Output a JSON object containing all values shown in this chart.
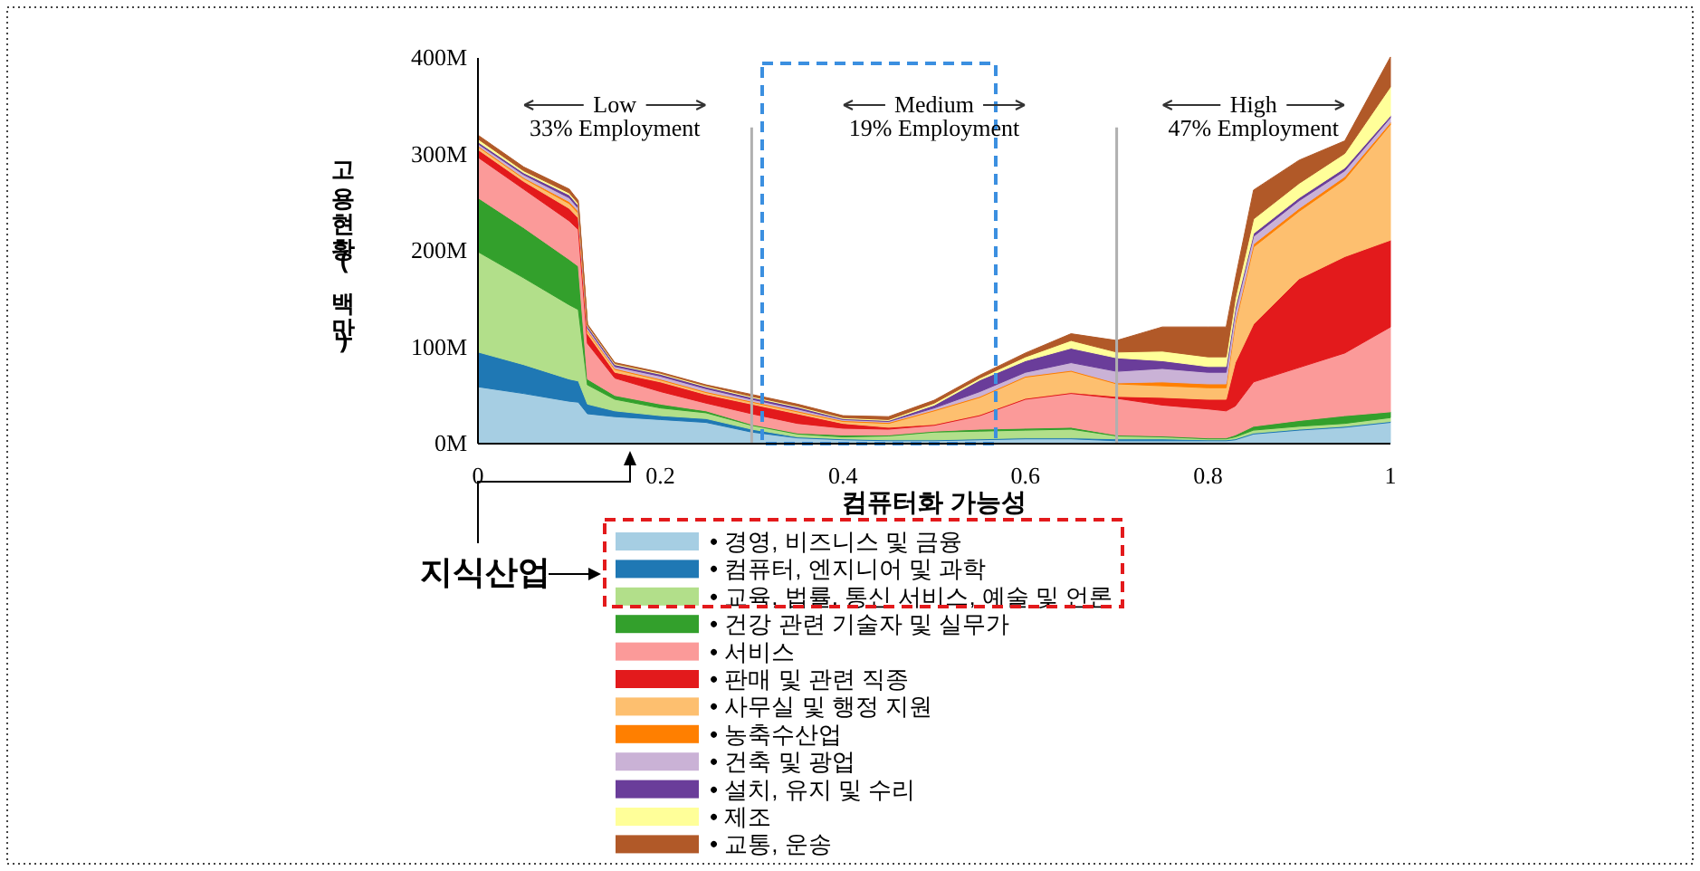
{
  "chart_data": {
    "type": "area",
    "stacked": true,
    "xlabel": "컴퓨터화 가능성",
    "ylabel": "고용현황(백만)",
    "x": [
      0,
      0.05,
      0.1,
      0.11,
      0.12,
      0.15,
      0.2,
      0.25,
      0.3,
      0.35,
      0.4,
      0.45,
      0.5,
      0.55,
      0.6,
      0.65,
      0.7,
      0.75,
      0.8,
      0.82,
      0.83,
      0.85,
      0.9,
      0.95,
      1
    ],
    "xlim": [
      0,
      1
    ],
    "xticks": [
      0,
      0.2,
      0.4,
      0.6,
      0.8,
      1
    ],
    "ylim": [
      0,
      400
    ],
    "yticks": [
      {
        "value": 0,
        "label": "0M"
      },
      {
        "value": 100,
        "label": "100M"
      },
      {
        "value": 200,
        "label": "200M"
      },
      {
        "value": 300,
        "label": "300M"
      },
      {
        "value": 400,
        "label": "400M"
      }
    ],
    "grid": false,
    "legend": "bottom",
    "series": [
      {
        "name": "• 경영, 비즈니스 및 금융",
        "color": "#a6cee3",
        "values": [
          59,
          52,
          44,
          43,
          31,
          28,
          25,
          22,
          12,
          6,
          4,
          3,
          3,
          4,
          5,
          5,
          3,
          3,
          3,
          3,
          4,
          10,
          14,
          17,
          22
        ]
      },
      {
        "name": "• 컴퓨터, 엔지니어 및 과학",
        "color": "#1f78b4",
        "values": [
          36,
          30,
          23,
          22,
          10,
          6,
          4,
          4,
          3,
          1,
          1,
          1,
          1,
          1,
          1,
          1,
          2,
          2,
          1,
          1,
          1,
          1,
          1,
          1,
          1
        ]
      },
      {
        "name": "• 교육, 법률, 통신 서비스, 예술 및 언론",
        "color": "#b2df8a",
        "values": [
          104,
          90,
          77,
          74,
          20,
          12,
          8,
          6,
          4,
          3,
          2,
          4,
          8,
          8,
          8,
          9,
          3,
          2,
          1,
          1,
          2,
          3,
          3,
          3,
          4
        ]
      },
      {
        "name": "• 건강 관련 기술자 및 실무가",
        "color": "#33a02c",
        "values": [
          56,
          52,
          47,
          45,
          6,
          4,
          4,
          2,
          1,
          1,
          2,
          1,
          1,
          2,
          2,
          2,
          1,
          1,
          1,
          1,
          2,
          4,
          6,
          8,
          6
        ]
      },
      {
        "name": "• 서비스",
        "color": "#fb9a99",
        "values": [
          42,
          40,
          40,
          38,
          37,
          18,
          13,
          8,
          11,
          10,
          7,
          6,
          6,
          14,
          30,
          35,
          38,
          32,
          30,
          28,
          30,
          46,
          55,
          65,
          88
        ]
      },
      {
        "name": "• 판매 및 관련 직종",
        "color": "#e31a1c",
        "values": [
          8,
          8,
          13,
          12,
          10,
          6,
          10,
          9,
          10,
          10,
          5,
          2,
          1,
          1,
          1,
          1,
          2,
          8,
          10,
          12,
          45,
          60,
          92,
          100,
          90
        ]
      },
      {
        "name": "• 사무실 및 행정 지원",
        "color": "#fdbf6f",
        "values": [
          3,
          3,
          5,
          5,
          3,
          3,
          2,
          2,
          2,
          2,
          2,
          4,
          14,
          18,
          22,
          22,
          13,
          12,
          12,
          12,
          40,
          80,
          70,
          80,
          120
        ]
      },
      {
        "name": "• 농축수산업",
        "color": "#ff7f00",
        "values": [
          1,
          1,
          2,
          2,
          1,
          1,
          1,
          1,
          1,
          1,
          1,
          1,
          1,
          1,
          1,
          1,
          1,
          4,
          4,
          4,
          3,
          3,
          3,
          3,
          2
        ]
      },
      {
        "name": "• 건축 및 광업",
        "color": "#cab2d6",
        "values": [
          2,
          3,
          4,
          3,
          2,
          2,
          3,
          3,
          2,
          2,
          1,
          1,
          2,
          5,
          4,
          8,
          12,
          14,
          12,
          12,
          10,
          8,
          8,
          6,
          5
        ]
      },
      {
        "name": "• 설치, 유지 및 수리",
        "color": "#6a3d9a",
        "values": [
          2,
          2,
          3,
          3,
          2,
          2,
          2,
          2,
          2,
          2,
          1,
          1,
          3,
          12,
          12,
          15,
          14,
          8,
          6,
          6,
          4,
          3,
          3,
          3,
          2
        ]
      },
      {
        "name": "• 제조",
        "color": "#ffff99",
        "values": [
          3,
          2,
          2,
          2,
          1,
          1,
          1,
          1,
          1,
          1,
          1,
          1,
          2,
          2,
          4,
          8,
          6,
          10,
          10,
          10,
          10,
          15,
          15,
          15,
          30
        ]
      },
      {
        "name": "• 교통, 운송",
        "color": "#b15928",
        "values": [
          4,
          4,
          4,
          3,
          1,
          1,
          1,
          1,
          2,
          2,
          2,
          3,
          3,
          3,
          4,
          7,
          12,
          25,
          31,
          31,
          20,
          30,
          24,
          13,
          31
        ]
      }
    ],
    "ref_lines": [
      {
        "axis": "x",
        "value": 0.3,
        "color": "#b0b0b0"
      },
      {
        "axis": "x",
        "value": 0.7,
        "color": "#b0b0b0"
      }
    ],
    "annotations": [
      "Low\n33% Employment",
      "Medium\n19% Employment",
      "High\n47% Employment",
      "지식산업"
    ]
  }
}
